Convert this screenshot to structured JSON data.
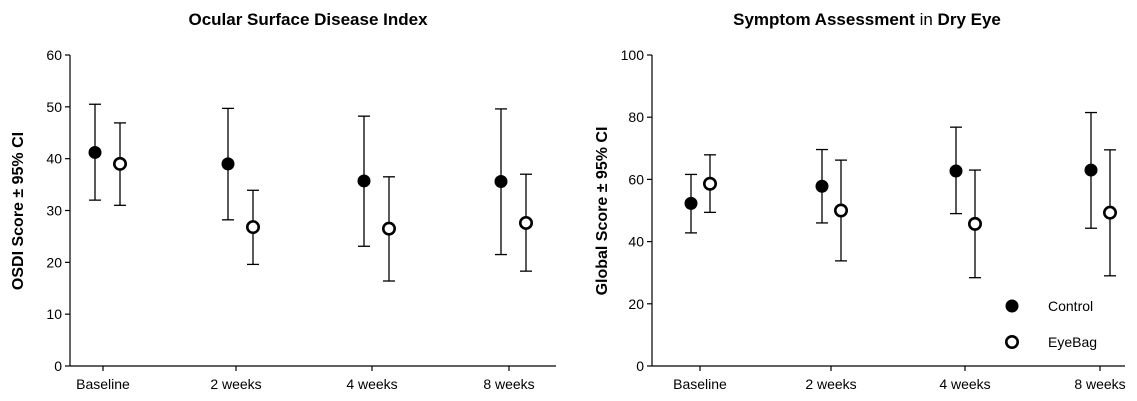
{
  "chart_data": [
    {
      "type": "scatter",
      "title": "Ocular Surface Disease Index",
      "ylabel": "OSDI Score ± 95% CI",
      "xlabel": "",
      "categories": [
        "Baseline",
        "2 weeks",
        "4 weeks",
        "8 weeks"
      ],
      "ylim": [
        0,
        60
      ],
      "yticks": [
        0,
        10,
        20,
        30,
        40,
        50,
        60
      ],
      "grid": false,
      "series": [
        {
          "name": "Control",
          "marker": "filled-circle",
          "color": "#000000",
          "values": [
            41.2,
            39.0,
            35.7,
            35.6
          ],
          "ci_low": [
            32.0,
            28.2,
            23.1,
            21.5
          ],
          "ci_high": [
            50.5,
            49.7,
            48.2,
            49.6
          ]
        },
        {
          "name": "EyeBag",
          "marker": "open-circle",
          "color": "#000000",
          "values": [
            39.0,
            26.8,
            26.5,
            27.6
          ],
          "ci_low": [
            31.0,
            19.6,
            16.4,
            18.3
          ],
          "ci_high": [
            46.9,
            33.9,
            36.5,
            37.0
          ]
        }
      ]
    },
    {
      "type": "scatter",
      "title": "Symptom Assessment in Dry Eye",
      "title_parts": [
        "Symptom Assessment",
        "in",
        "Dry Eye"
      ],
      "ylabel": "Global Score ± 95% CI",
      "xlabel": "",
      "categories": [
        "Baseline",
        "2 weeks",
        "4 weeks",
        "8 weeks"
      ],
      "ylim": [
        0,
        100
      ],
      "yticks": [
        0,
        20,
        40,
        60,
        80,
        100
      ],
      "grid": false,
      "legend": {
        "placement": "bottom-right",
        "entries": [
          "Control",
          "EyeBag"
        ]
      },
      "series": [
        {
          "name": "Control",
          "marker": "filled-circle",
          "color": "#000000",
          "values": [
            52.3,
            57.8,
            62.7,
            63.0
          ],
          "ci_low": [
            42.8,
            46.0,
            49.0,
            44.3
          ],
          "ci_high": [
            61.6,
            69.6,
            76.8,
            81.5
          ]
        },
        {
          "name": "EyeBag",
          "marker": "open-circle",
          "color": "#000000",
          "values": [
            58.6,
            50.0,
            45.7,
            49.3
          ],
          "ci_low": [
            49.4,
            33.8,
            28.4,
            29.0
          ],
          "ci_high": [
            67.9,
            66.2,
            63.0,
            69.5
          ]
        }
      ]
    }
  ]
}
